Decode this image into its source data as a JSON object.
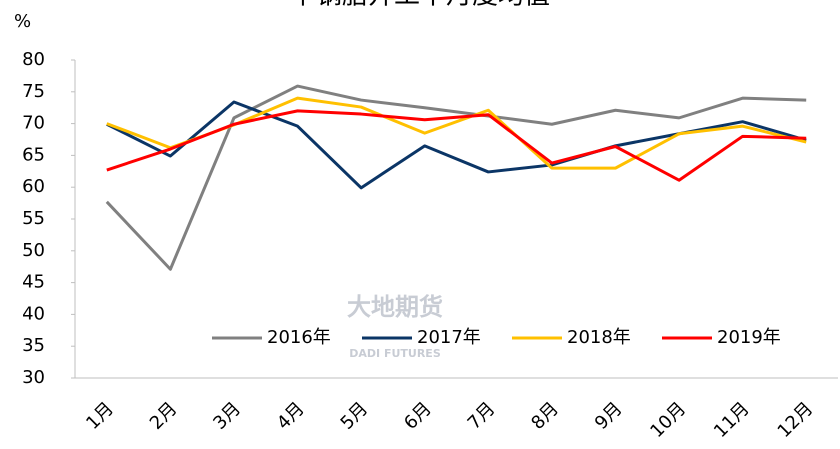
{
  "chart_data": {
    "type": "line",
    "title": "半钢胎开工率月度均值",
    "y_label": "%",
    "watermark": [
      "大地期货",
      "DADI FUTURES"
    ],
    "categories": [
      "1月",
      "2月",
      "3月",
      "4月",
      "5月",
      "6月",
      "7月",
      "8月",
      "9月",
      "10月",
      "11月",
      "12月"
    ],
    "series": [
      {
        "name": "2016年",
        "color": "#808080",
        "values": [
          57.7,
          47.1,
          70.9,
          75.9,
          73.7,
          72.5,
          71.2,
          69.9,
          72.1,
          70.9,
          74.0,
          73.7
        ]
      },
      {
        "name": "2017年",
        "color": "#0b3566",
        "values": [
          69.9,
          64.9,
          73.4,
          69.6,
          59.9,
          66.5,
          62.4,
          63.5,
          66.5,
          68.4,
          70.3,
          67.4
        ]
      },
      {
        "name": "2018年",
        "color": "#ffc000",
        "values": [
          70.0,
          66.2,
          69.8,
          74.0,
          72.6,
          68.5,
          72.1,
          63.0,
          63.0,
          68.4,
          69.6,
          67.1
        ]
      },
      {
        "name": "2019年",
        "color": "#ff0000",
        "values": [
          62.7,
          66.0,
          69.9,
          72.0,
          71.5,
          70.6,
          71.4,
          63.8,
          66.4,
          61.1,
          68.0,
          67.7
        ]
      }
    ],
    "ylim": [
      30,
      80
    ],
    "yticks": [
      30,
      35,
      40,
      45,
      50,
      55,
      60,
      65,
      70,
      75,
      80
    ],
    "legend": "bottom",
    "grid": false
  }
}
